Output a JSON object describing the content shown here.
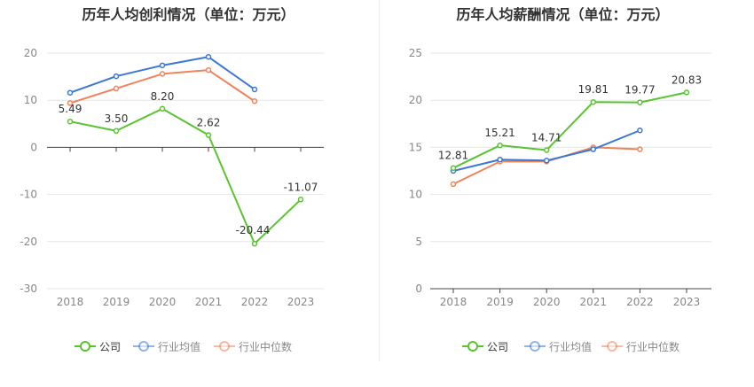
{
  "charts": [
    {
      "title": "历年人均创利情况（单位：万元）",
      "legend": [
        {
          "label": "公司",
          "color": "#5ac42f"
        },
        {
          "label": "行业均值",
          "color": "#3c77d6"
        },
        {
          "label": "行业中位数",
          "color": "#f0835c"
        }
      ]
    },
    {
      "title": "历年人均薪酬情况（单位：万元）",
      "legend": [
        {
          "label": "公司",
          "color": "#5ac42f"
        },
        {
          "label": "行业均值",
          "color": "#3c77d6"
        },
        {
          "label": "行业中位数",
          "color": "#f0835c"
        }
      ]
    }
  ],
  "chart_data": [
    {
      "type": "line",
      "title": "历年人均创利情况（单位：万元）",
      "categories": [
        "2018",
        "2019",
        "2020",
        "2021",
        "2022",
        "2023"
      ],
      "ylim": [
        -30,
        20
      ],
      "yticks": [
        -30,
        -20,
        -10,
        0,
        10,
        20
      ],
      "grid": true,
      "legend_position": "bottom",
      "series": [
        {
          "name": "公司",
          "color": "#5ac42f",
          "values": [
            5.49,
            3.5,
            8.2,
            2.62,
            -20.44,
            -11.07
          ],
          "labels": [
            "5.49",
            "3.50",
            "8.20",
            "2.62",
            "-20.44",
            "-11.07"
          ]
        },
        {
          "name": "行业均值",
          "color": "#3c77d6",
          "values": [
            11.6,
            15.1,
            17.4,
            19.2,
            12.3,
            null
          ]
        },
        {
          "name": "行业中位数",
          "color": "#f0835c",
          "values": [
            9.4,
            12.5,
            15.6,
            16.4,
            9.8,
            null
          ]
        }
      ]
    },
    {
      "type": "line",
      "title": "历年人均薪酬情况（单位：万元）",
      "categories": [
        "2018",
        "2019",
        "2020",
        "2021",
        "2022",
        "2023"
      ],
      "ylim": [
        0,
        25
      ],
      "yticks": [
        0,
        5,
        10,
        15,
        20,
        25
      ],
      "grid": true,
      "legend_position": "bottom",
      "series": [
        {
          "name": "公司",
          "color": "#5ac42f",
          "values": [
            12.81,
            15.21,
            14.71,
            19.81,
            19.77,
            20.83
          ],
          "labels": [
            "12.81",
            "15.21",
            "14.71",
            "19.81",
            "19.77",
            "20.83"
          ]
        },
        {
          "name": "行业均值",
          "color": "#3c77d6",
          "values": [
            12.5,
            13.7,
            13.6,
            14.8,
            16.8,
            null
          ]
        },
        {
          "name": "行业中位数",
          "color": "#f0835c",
          "values": [
            11.1,
            13.5,
            13.5,
            15.0,
            14.8,
            null
          ]
        }
      ]
    }
  ]
}
